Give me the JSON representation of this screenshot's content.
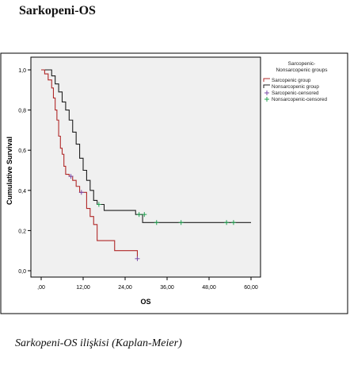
{
  "page": {
    "heading": "Sarkopeni-OS",
    "caption": "Sarkopeni-OS ilişkisi (Kaplan-Meier)"
  },
  "colors": {
    "plot_background": "#f0f0f0",
    "sarcopenic": "#b02828",
    "nonsarcopenic": "#1e1e1e",
    "sarcopenic_censored": "#7a4da8",
    "nonsarcopenic_censored": "#22a050"
  },
  "chart_data": {
    "type": "line",
    "subtype": "kaplan-meier-step",
    "xlabel": "OS",
    "ylabel": "Cumulative Survival",
    "xlim": [
      0,
      60
    ],
    "ylim": [
      0,
      1
    ],
    "x_ticks": [
      0,
      12,
      24,
      36,
      48,
      60
    ],
    "x_tick_labels": [
      ",00",
      "12,00",
      "24,00",
      "36,00",
      "48,00",
      "60,00"
    ],
    "y_ticks": [
      0,
      0.2,
      0.4,
      0.6,
      0.8,
      1.0
    ],
    "y_tick_labels": [
      "0,0",
      "0,2",
      "0,4",
      "0,6",
      "0,8",
      "1,0"
    ],
    "grid": false,
    "legend": {
      "title": "Sarcopenic-\nNonsarcopenic groups",
      "placement": "right",
      "entries": [
        {
          "label": "Sarcopenic group",
          "color_key": "sarcopenic",
          "marker": "line"
        },
        {
          "label": "Nonsarcopenic group",
          "color_key": "nonsarcopenic",
          "marker": "line"
        },
        {
          "label": "Sarcopenic-censored",
          "color_key": "sarcopenic_censored",
          "marker": "plus"
        },
        {
          "label": "Nonsarcopenic-censored",
          "color_key": "nonsarcopenic_censored",
          "marker": "plus"
        }
      ]
    },
    "series": [
      {
        "name": "Sarcopenic group",
        "color_key": "sarcopenic",
        "steps": [
          {
            "x": 0,
            "y": 1.0
          },
          {
            "x": 1,
            "y": 0.98
          },
          {
            "x": 2,
            "y": 0.95
          },
          {
            "x": 3,
            "y": 0.91
          },
          {
            "x": 3.5,
            "y": 0.86
          },
          {
            "x": 4,
            "y": 0.8
          },
          {
            "x": 4.5,
            "y": 0.75
          },
          {
            "x": 5,
            "y": 0.67
          },
          {
            "x": 5.5,
            "y": 0.61
          },
          {
            "x": 6,
            "y": 0.58
          },
          {
            "x": 6.5,
            "y": 0.52
          },
          {
            "x": 7,
            "y": 0.48
          },
          {
            "x": 8,
            "y": 0.47
          },
          {
            "x": 9,
            "y": 0.45
          },
          {
            "x": 10,
            "y": 0.42
          },
          {
            "x": 11,
            "y": 0.39
          },
          {
            "x": 13,
            "y": 0.31
          },
          {
            "x": 14,
            "y": 0.27
          },
          {
            "x": 15,
            "y": 0.23
          },
          {
            "x": 16,
            "y": 0.15
          },
          {
            "x": 20,
            "y": 0.15
          },
          {
            "x": 21,
            "y": 0.1
          },
          {
            "x": 27.5,
            "y": 0.06
          }
        ],
        "censored": [
          {
            "x": 8.5,
            "y": 0.47
          },
          {
            "x": 11.5,
            "y": 0.39
          },
          {
            "x": 27.5,
            "y": 0.06
          }
        ]
      },
      {
        "name": "Nonsarcopenic group",
        "color_key": "nonsarcopenic",
        "steps": [
          {
            "x": 0,
            "y": 1.0
          },
          {
            "x": 3,
            "y": 0.97
          },
          {
            "x": 4,
            "y": 0.93
          },
          {
            "x": 5,
            "y": 0.89
          },
          {
            "x": 6,
            "y": 0.84
          },
          {
            "x": 7,
            "y": 0.8
          },
          {
            "x": 8,
            "y": 0.75
          },
          {
            "x": 9,
            "y": 0.69
          },
          {
            "x": 10,
            "y": 0.63
          },
          {
            "x": 11,
            "y": 0.56
          },
          {
            "x": 12,
            "y": 0.5
          },
          {
            "x": 13,
            "y": 0.45
          },
          {
            "x": 14,
            "y": 0.4
          },
          {
            "x": 15,
            "y": 0.35
          },
          {
            "x": 16,
            "y": 0.33
          },
          {
            "x": 18,
            "y": 0.3
          },
          {
            "x": 27,
            "y": 0.28
          },
          {
            "x": 29,
            "y": 0.24
          },
          {
            "x": 60,
            "y": 0.24
          }
        ],
        "censored": [
          {
            "x": 16.5,
            "y": 0.33
          },
          {
            "x": 28,
            "y": 0.28
          },
          {
            "x": 29.5,
            "y": 0.28
          },
          {
            "x": 33,
            "y": 0.24
          },
          {
            "x": 40,
            "y": 0.24
          },
          {
            "x": 53,
            "y": 0.24
          },
          {
            "x": 55,
            "y": 0.24
          }
        ]
      }
    ]
  }
}
